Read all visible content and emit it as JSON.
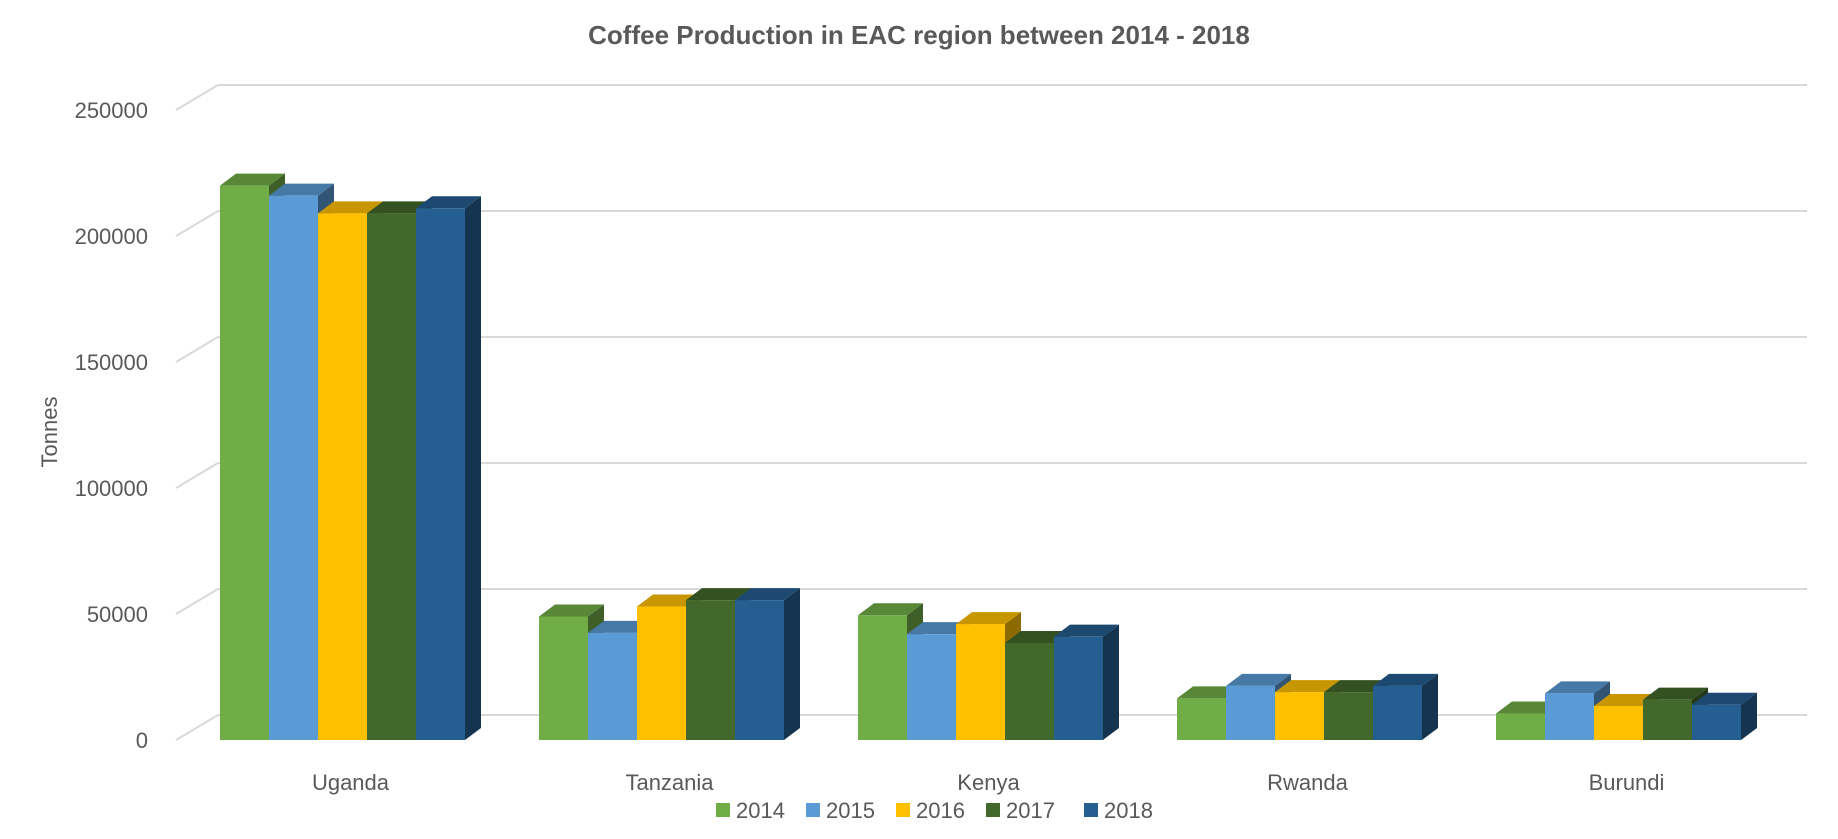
{
  "chart_data": {
    "type": "bar",
    "title": "Coffee Production in EAC region between 2014 - 2018",
    "xlabel": "",
    "ylabel": "Tonnes",
    "ylim": [
      0,
      250000
    ],
    "yticks": [
      0,
      50000,
      100000,
      150000,
      200000,
      250000
    ],
    "grid": true,
    "legend_position": "bottom",
    "categories": [
      "Uganda",
      "Tanzania",
      "Kenya",
      "Rwanda",
      "Burundi"
    ],
    "series": [
      {
        "name": "2014",
        "color": "#70AD47",
        "values": [
          220000,
          49000,
          49500,
          16500,
          10500
        ]
      },
      {
        "name": "2015",
        "color": "#5B9BD5",
        "values": [
          216000,
          42500,
          42000,
          21500,
          18500
        ]
      },
      {
        "name": "2016",
        "color": "#FFC000",
        "values": [
          209000,
          53000,
          46000,
          19000,
          13500
        ]
      },
      {
        "name": "2017",
        "color": "#43682B",
        "values": [
          209000,
          55500,
          38500,
          19000,
          16000
        ]
      },
      {
        "name": "2018",
        "color": "#255E91",
        "values": [
          211000,
          55500,
          41000,
          21500,
          14000
        ]
      }
    ]
  }
}
